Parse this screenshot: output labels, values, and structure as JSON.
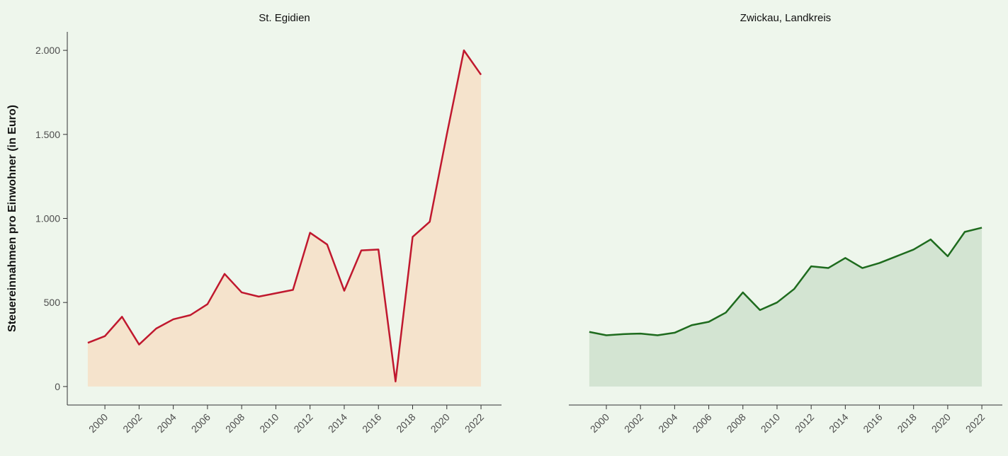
{
  "chart_data": [
    {
      "type": "area",
      "title": "St. Egidien",
      "y_label": "Steuereinnahmen pro Einwohner (in Euro)",
      "x": [
        1999,
        2000,
        2001,
        2002,
        2003,
        2004,
        2005,
        2006,
        2007,
        2008,
        2009,
        2010,
        2011,
        2012,
        2013,
        2014,
        2015,
        2016,
        2017,
        2018,
        2019,
        2020,
        2021,
        2022
      ],
      "series": [
        {
          "color": "#c0182e",
          "fill": "#f5e3cc",
          "values": [
            260,
            300,
            415,
            250,
            345,
            400,
            425,
            490,
            670,
            560,
            535,
            555,
            575,
            915,
            845,
            570,
            810,
            815,
            30,
            890,
            980,
            1500,
            2000,
            1855
          ]
        }
      ],
      "xlim": [
        1997.8,
        2023.2
      ],
      "ylim": [
        -110,
        2110
      ],
      "xticks": [
        2000,
        2002,
        2004,
        2006,
        2008,
        2010,
        2012,
        2014,
        2016,
        2018,
        2020,
        2022
      ],
      "yticks": [
        0,
        500,
        {
          "value": 1000,
          "label": "1.000"
        },
        {
          "value": 1500,
          "label": "1.500"
        },
        {
          "value": 2000,
          "label": "2.000"
        }
      ]
    },
    {
      "type": "area",
      "title": "Zwickau, Landkreis",
      "x": [
        1999,
        2000,
        2001,
        2002,
        2003,
        2004,
        2005,
        2006,
        2007,
        2008,
        2009,
        2010,
        2011,
        2012,
        2013,
        2014,
        2015,
        2016,
        2017,
        2018,
        2019,
        2020,
        2021,
        2022
      ],
      "series": [
        {
          "color": "#1e6b1e",
          "fill": "#d3e4d2",
          "values": [
            325,
            305,
            312,
            315,
            305,
            320,
            365,
            385,
            440,
            560,
            455,
            500,
            580,
            715,
            705,
            765,
            705,
            735,
            775,
            815,
            875,
            775,
            920,
            945
          ]
        }
      ],
      "xlim": [
        1997.8,
        2023.2
      ],
      "ylim": [
        -110,
        2110
      ],
      "xticks": [
        2000,
        2002,
        2004,
        2006,
        2008,
        2010,
        2012,
        2014,
        2016,
        2018,
        2020,
        2022
      ]
    }
  ]
}
